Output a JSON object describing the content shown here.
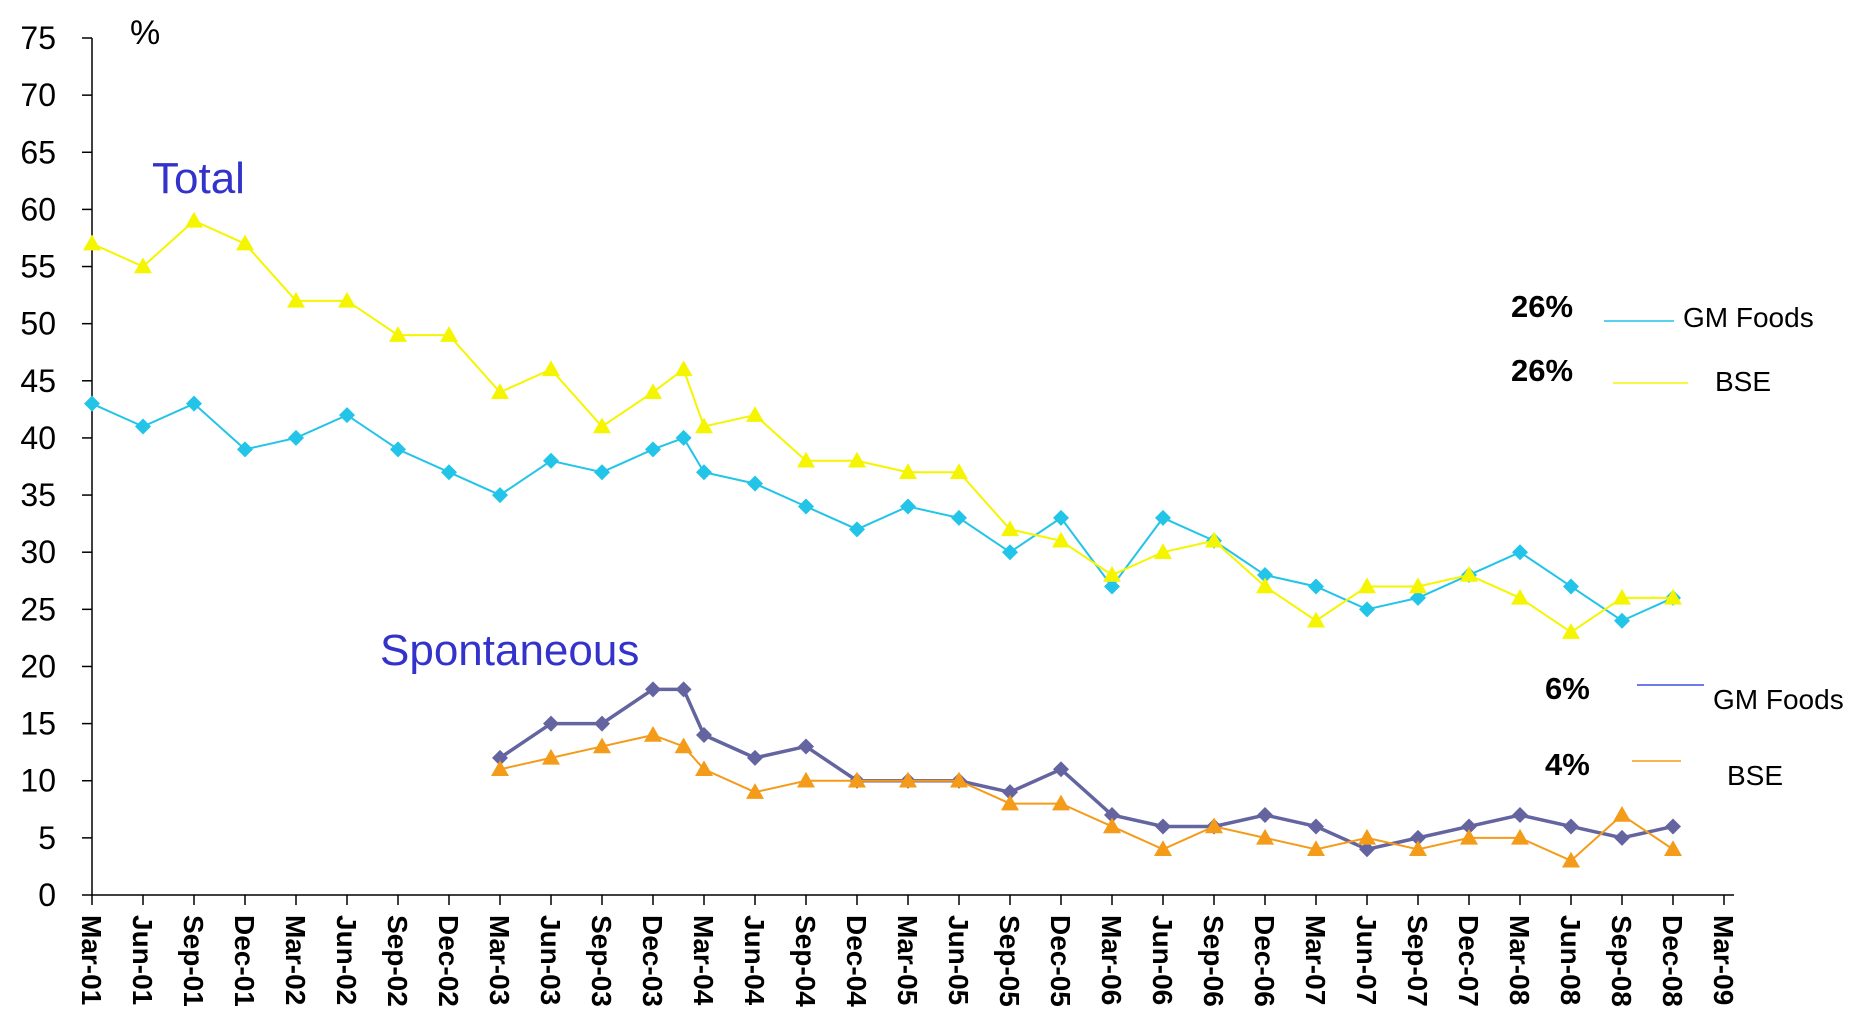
{
  "chart_data": {
    "type": "line",
    "unit_label": "%",
    "ylim": [
      0,
      75
    ],
    "yticks": [
      0,
      5,
      10,
      15,
      20,
      25,
      30,
      35,
      40,
      45,
      50,
      55,
      60,
      65,
      70,
      75
    ],
    "categories": [
      "Mar-01",
      "Jun-01",
      "Sep-01",
      "Dec-01",
      "Mar-02",
      "Jun-02",
      "Sep-02",
      "Dec-02",
      "Mar-03",
      "Jun-03",
      "Sep-03",
      "Dec-03",
      "Mar-04",
      "Jun-04",
      "Sep-04",
      "Dec-04",
      "Mar-05",
      "Jun-05",
      "Sep-05",
      "Dec-05",
      "Mar-06",
      "Jun-06",
      "Sep-06",
      "Dec-06",
      "Mar-07",
      "Jun-07",
      "Sep-07",
      "Dec-07",
      "Mar-08",
      "Jun-08",
      "Sep-08",
      "Dec-08",
      "Mar-09"
    ],
    "group_labels": {
      "total": "Total",
      "spontaneous": "Spontaneous"
    },
    "series": [
      {
        "name": "GM Foods",
        "group": "total",
        "color": "#22c4e8",
        "marker": "diamond",
        "points": [
          [
            0,
            43
          ],
          [
            1,
            41
          ],
          [
            2,
            43
          ],
          [
            3,
            39
          ],
          [
            4,
            40
          ],
          [
            5,
            42
          ],
          [
            6,
            39
          ],
          [
            7,
            37
          ],
          [
            8,
            35
          ],
          [
            9,
            38
          ],
          [
            10,
            37
          ],
          [
            11,
            39
          ],
          [
            11.6,
            40
          ],
          [
            12,
            37
          ],
          [
            13,
            36
          ],
          [
            14,
            34
          ],
          [
            15,
            32
          ],
          [
            16,
            34
          ],
          [
            17,
            33
          ],
          [
            18,
            30
          ],
          [
            19,
            33
          ],
          [
            20,
            27
          ],
          [
            21,
            33
          ],
          [
            22,
            31
          ],
          [
            23,
            28
          ],
          [
            24,
            27
          ],
          [
            25,
            25
          ],
          [
            26,
            26
          ],
          [
            27,
            28
          ],
          [
            28,
            30
          ],
          [
            29,
            27
          ],
          [
            30,
            24
          ],
          [
            31,
            26
          ]
        ]
      },
      {
        "name": "BSE",
        "group": "total",
        "color": "#f5f500",
        "marker": "triangle",
        "points": [
          [
            0,
            57
          ],
          [
            1,
            55
          ],
          [
            2,
            59
          ],
          [
            3,
            57
          ],
          [
            4,
            52
          ],
          [
            5,
            52
          ],
          [
            6,
            49
          ],
          [
            7,
            49
          ],
          [
            8,
            44
          ],
          [
            9,
            46
          ],
          [
            10,
            41
          ],
          [
            11,
            44
          ],
          [
            11.6,
            46
          ],
          [
            12,
            41
          ],
          [
            13,
            42
          ],
          [
            14,
            38
          ],
          [
            15,
            38
          ],
          [
            16,
            37
          ],
          [
            17,
            37
          ],
          [
            18,
            32
          ],
          [
            19,
            31
          ],
          [
            20,
            28
          ],
          [
            21,
            30
          ],
          [
            22,
            31
          ],
          [
            23,
            27
          ],
          [
            24,
            24
          ],
          [
            25,
            27
          ],
          [
            26,
            27
          ],
          [
            27,
            28
          ],
          [
            28,
            26
          ],
          [
            29,
            23
          ],
          [
            30,
            26
          ],
          [
            31,
            26
          ]
        ]
      },
      {
        "name": "GM Foods",
        "group": "spontaneous",
        "color": "#6464a0",
        "marker": "diamond",
        "points": [
          [
            8,
            12
          ],
          [
            9,
            15
          ],
          [
            10,
            15
          ],
          [
            11,
            18
          ],
          [
            11.6,
            18
          ],
          [
            12,
            14
          ],
          [
            13,
            12
          ],
          [
            14,
            13
          ],
          [
            15,
            10
          ],
          [
            16,
            10
          ],
          [
            17,
            10
          ],
          [
            18,
            9
          ],
          [
            19,
            11
          ],
          [
            20,
            7
          ],
          [
            21,
            6
          ],
          [
            22,
            6
          ],
          [
            23,
            7
          ],
          [
            24,
            6
          ],
          [
            25,
            4
          ],
          [
            26,
            5
          ],
          [
            27,
            6
          ],
          [
            28,
            7
          ],
          [
            29,
            6
          ],
          [
            30,
            5
          ],
          [
            31,
            6
          ]
        ]
      },
      {
        "name": "BSE",
        "group": "spontaneous",
        "color": "#f59b1a",
        "marker": "triangle",
        "points": [
          [
            8,
            11
          ],
          [
            9,
            12
          ],
          [
            10,
            13
          ],
          [
            11,
            14
          ],
          [
            11.6,
            13
          ],
          [
            12,
            11
          ],
          [
            13,
            9
          ],
          [
            14,
            10
          ],
          [
            15,
            10
          ],
          [
            16,
            10
          ],
          [
            17,
            10
          ],
          [
            18,
            8
          ],
          [
            19,
            8
          ],
          [
            20,
            6
          ],
          [
            21,
            4
          ],
          [
            22,
            6
          ],
          [
            23,
            5
          ],
          [
            24,
            4
          ],
          [
            25,
            5
          ],
          [
            26,
            4
          ],
          [
            27,
            5
          ],
          [
            28,
            5
          ],
          [
            29,
            3
          ],
          [
            30,
            7
          ],
          [
            31,
            4
          ]
        ]
      }
    ],
    "legend": {
      "total": [
        {
          "value": "26%",
          "name": "GM Foods",
          "color": "#22c4e8"
        },
        {
          "value": "26%",
          "name": "BSE",
          "color": "#f5f500"
        }
      ],
      "spontaneous": [
        {
          "value": "6%",
          "name": "GM Foods",
          "color": "#3a4fe0"
        },
        {
          "value": "4%",
          "name": "BSE",
          "color": "#f59b1a"
        }
      ]
    }
  }
}
